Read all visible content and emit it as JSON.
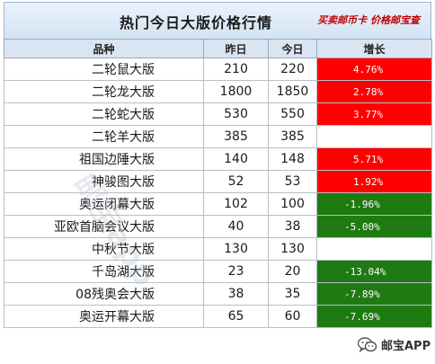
{
  "header": {
    "title": "热门今日大版价格行情",
    "slogan": "买卖邮币卡 价格邮宝查"
  },
  "table": {
    "columns": [
      "品种",
      "昨日",
      "今日",
      "增长"
    ],
    "rows": [
      {
        "name": "二轮鼠大版",
        "yesterday": "210",
        "today": "220",
        "change": "4.76%",
        "trend": "up"
      },
      {
        "name": "二轮龙大版",
        "yesterday": "1800",
        "today": "1850",
        "change": "2.78%",
        "trend": "up"
      },
      {
        "name": "二轮蛇大版",
        "yesterday": "530",
        "today": "550",
        "change": "3.77%",
        "trend": "up"
      },
      {
        "name": "二轮羊大版",
        "yesterday": "385",
        "today": "385",
        "change": "",
        "trend": "none"
      },
      {
        "name": "祖国边陲大版",
        "yesterday": "140",
        "today": "148",
        "change": "5.71%",
        "trend": "up"
      },
      {
        "name": "神骏图大版",
        "yesterday": "52",
        "today": "53",
        "change": "1.92%",
        "trend": "up"
      },
      {
        "name": "奥运闭幕大版",
        "yesterday": "102",
        "today": "100",
        "change": "-1.96%",
        "trend": "down"
      },
      {
        "name": "亚欧首脑会议大版",
        "yesterday": "40",
        "today": "38",
        "change": "-5.00%",
        "trend": "down"
      },
      {
        "name": "中秋节大版",
        "yesterday": "130",
        "today": "130",
        "change": "",
        "trend": "none"
      },
      {
        "name": "千岛湖大版",
        "yesterday": "23",
        "today": "20",
        "change": "-13.04%",
        "trend": "down"
      },
      {
        "name": "08残奥会大版",
        "yesterday": "38",
        "today": "35",
        "change": "-7.89%",
        "trend": "down"
      },
      {
        "name": "奥运开幕大版",
        "yesterday": "65",
        "today": "60",
        "change": "-7.69%",
        "trend": "down"
      }
    ]
  },
  "watermark": "邮宝app",
  "badge": {
    "brand": "邮宝APP",
    "icon": "wechat-icon"
  },
  "colors": {
    "up": "#ff0000",
    "down": "#1f7a12",
    "header_bg": "#dbe5f1"
  }
}
